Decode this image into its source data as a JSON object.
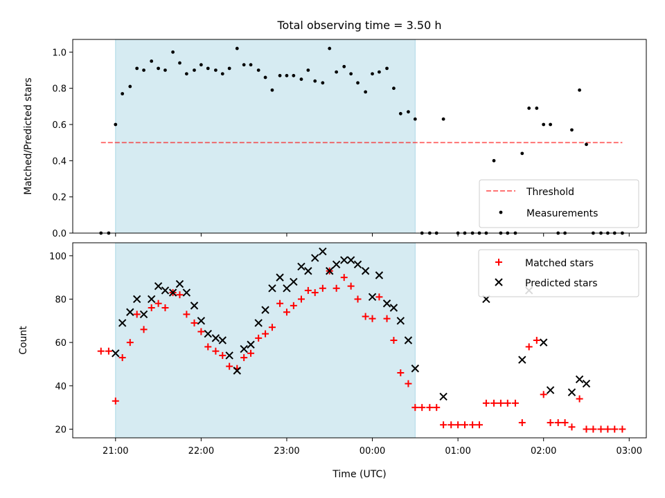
{
  "title": "Total observing time = 3.50 h",
  "colors": {
    "shade": "#add8e6",
    "threshold": "#ff0000",
    "measurement": "#000000",
    "matched": "#ff0000",
    "predicted": "#000000"
  },
  "chart_data": [
    {
      "type": "scatter",
      "panel": "top",
      "title": "Total observing time = 3.50 h",
      "xlabel": "",
      "ylabel": "Matched/Predicted stars",
      "x_unit": "time (h since 20:00 UTC on first night)",
      "xlim": [
        0.5,
        7.2
      ],
      "ylim": [
        0.0,
        1.07
      ],
      "yticks": [
        0.0,
        0.2,
        0.4,
        0.6,
        0.8,
        1.0
      ],
      "ytick_labels": [
        "0.0",
        "0.2",
        "0.4",
        "0.6",
        "0.8",
        "1.0"
      ],
      "shaded_interval": [
        1.0,
        4.5
      ],
      "legend_position": "lower right",
      "threshold": {
        "name": "Threshold",
        "y": 0.5,
        "x_range": [
          0.83,
          6.92
        ]
      },
      "series": [
        {
          "name": "Measurements",
          "marker": "dot",
          "x": [
            0.83,
            0.92,
            1.0,
            1.08,
            1.17,
            1.25,
            1.33,
            1.42,
            1.5,
            1.58,
            1.67,
            1.75,
            1.83,
            1.92,
            2.0,
            2.08,
            2.17,
            2.25,
            2.33,
            2.42,
            2.5,
            2.58,
            2.67,
            2.75,
            2.83,
            2.92,
            3.0,
            3.08,
            3.17,
            3.25,
            3.33,
            3.42,
            3.5,
            3.58,
            3.67,
            3.75,
            3.83,
            3.92,
            4.0,
            4.08,
            4.17,
            4.25,
            4.33,
            4.42,
            4.5,
            4.58,
            4.67,
            4.75,
            4.83,
            5.0,
            5.08,
            5.17,
            5.25,
            5.33,
            5.42,
            5.5,
            5.58,
            5.67,
            5.75,
            5.83,
            5.92,
            6.0,
            6.08,
            6.17,
            6.25,
            6.33,
            6.42,
            6.5,
            6.58,
            6.67,
            6.75,
            6.83,
            6.92
          ],
          "y": [
            0.0,
            0.0,
            0.6,
            0.77,
            0.81,
            0.91,
            0.9,
            0.95,
            0.91,
            0.9,
            1.0,
            0.94,
            0.88,
            0.9,
            0.93,
            0.91,
            0.9,
            0.88,
            0.91,
            1.02,
            0.93,
            0.93,
            0.9,
            0.86,
            0.79,
            0.87,
            0.87,
            0.87,
            0.85,
            0.9,
            0.84,
            0.83,
            1.02,
            0.89,
            0.92,
            0.88,
            0.83,
            0.78,
            0.88,
            0.89,
            0.91,
            0.8,
            0.66,
            0.67,
            0.63,
            0.0,
            0.0,
            0.0,
            0.63,
            0.0,
            0.0,
            0.0,
            0.0,
            0.0,
            0.4,
            0.0,
            0.0,
            0.0,
            0.44,
            0.69,
            0.69,
            0.6,
            0.6,
            0.0,
            0.0,
            0.57,
            0.79,
            0.49,
            0.0,
            0.0,
            0.0,
            0.0,
            0.0
          ]
        }
      ]
    },
    {
      "type": "scatter",
      "panel": "bottom",
      "xlabel": "Time (UTC)",
      "ylabel": "Count",
      "x_unit": "time (h since 20:00 UTC on first night)",
      "xlim": [
        0.5,
        7.2
      ],
      "ylim": [
        16,
        106
      ],
      "yticks": [
        20,
        40,
        60,
        80,
        100
      ],
      "ytick_labels": [
        "20",
        "40",
        "60",
        "80",
        "100"
      ],
      "xticks": [
        1,
        2,
        3,
        4,
        5,
        6,
        7
      ],
      "xtick_labels": [
        "21:00",
        "22:00",
        "23:00",
        "00:00",
        "01:00",
        "02:00",
        "03:00"
      ],
      "shaded_interval": [
        1.0,
        4.5
      ],
      "legend_position": "upper right",
      "series": [
        {
          "name": "Matched stars",
          "marker": "plus",
          "x": [
            0.83,
            0.92,
            1.0,
            1.08,
            1.17,
            1.25,
            1.33,
            1.42,
            1.5,
            1.58,
            1.67,
            1.75,
            1.83,
            1.92,
            2.0,
            2.08,
            2.17,
            2.25,
            2.33,
            2.42,
            2.5,
            2.58,
            2.67,
            2.75,
            2.83,
            2.92,
            3.0,
            3.08,
            3.17,
            3.25,
            3.33,
            3.42,
            3.5,
            3.58,
            3.67,
            3.75,
            3.83,
            3.92,
            4.0,
            4.08,
            4.17,
            4.25,
            4.33,
            4.42,
            4.5,
            4.58,
            4.67,
            4.75,
            4.83,
            4.92,
            5.0,
            5.08,
            5.17,
            5.25,
            5.33,
            5.42,
            5.5,
            5.58,
            5.67,
            5.75,
            5.83,
            5.92,
            6.0,
            6.08,
            6.17,
            6.25,
            6.33,
            6.42,
            6.5,
            6.58,
            6.67,
            6.75,
            6.83,
            6.92
          ],
          "y": [
            56,
            56,
            33,
            53,
            60,
            73,
            66,
            76,
            78,
            76,
            83,
            82,
            73,
            69,
            65,
            58,
            56,
            54,
            49,
            48,
            53,
            55,
            62,
            64,
            67,
            78,
            74,
            77,
            80,
            84,
            83,
            85,
            93,
            85,
            90,
            86,
            80,
            72,
            71,
            81,
            71,
            61,
            46,
            41,
            30,
            30,
            30,
            30,
            22,
            22,
            22,
            22,
            22,
            22,
            32,
            32,
            32,
            32,
            32,
            23,
            58,
            61,
            36,
            23,
            23,
            23,
            21,
            34,
            20,
            20,
            20,
            20,
            20,
            20
          ]
        },
        {
          "name": "Predicted stars",
          "marker": "x",
          "x": [
            1.0,
            1.08,
            1.17,
            1.25,
            1.33,
            1.42,
            1.5,
            1.58,
            1.67,
            1.75,
            1.83,
            1.92,
            2.0,
            2.08,
            2.17,
            2.25,
            2.33,
            2.42,
            2.5,
            2.58,
            2.67,
            2.75,
            2.83,
            2.92,
            3.0,
            3.08,
            3.17,
            3.25,
            3.33,
            3.42,
            3.5,
            3.58,
            3.67,
            3.75,
            3.83,
            3.92,
            4.0,
            4.08,
            4.17,
            4.25,
            4.33,
            4.42,
            4.5,
            4.83,
            5.33,
            5.75,
            5.83,
            6.0,
            6.08,
            6.33,
            6.42,
            6.5
          ],
          "y": [
            55,
            69,
            74,
            80,
            73,
            80,
            86,
            84,
            83,
            87,
            83,
            77,
            70,
            64,
            62,
            61,
            54,
            47,
            57,
            59,
            69,
            75,
            85,
            90,
            85,
            88,
            95,
            93,
            99,
            102,
            93,
            96,
            98,
            98,
            96,
            93,
            81,
            91,
            78,
            76,
            70,
            61,
            48,
            35,
            80,
            52,
            84,
            60,
            38,
            37,
            43,
            41
          ]
        }
      ]
    }
  ]
}
